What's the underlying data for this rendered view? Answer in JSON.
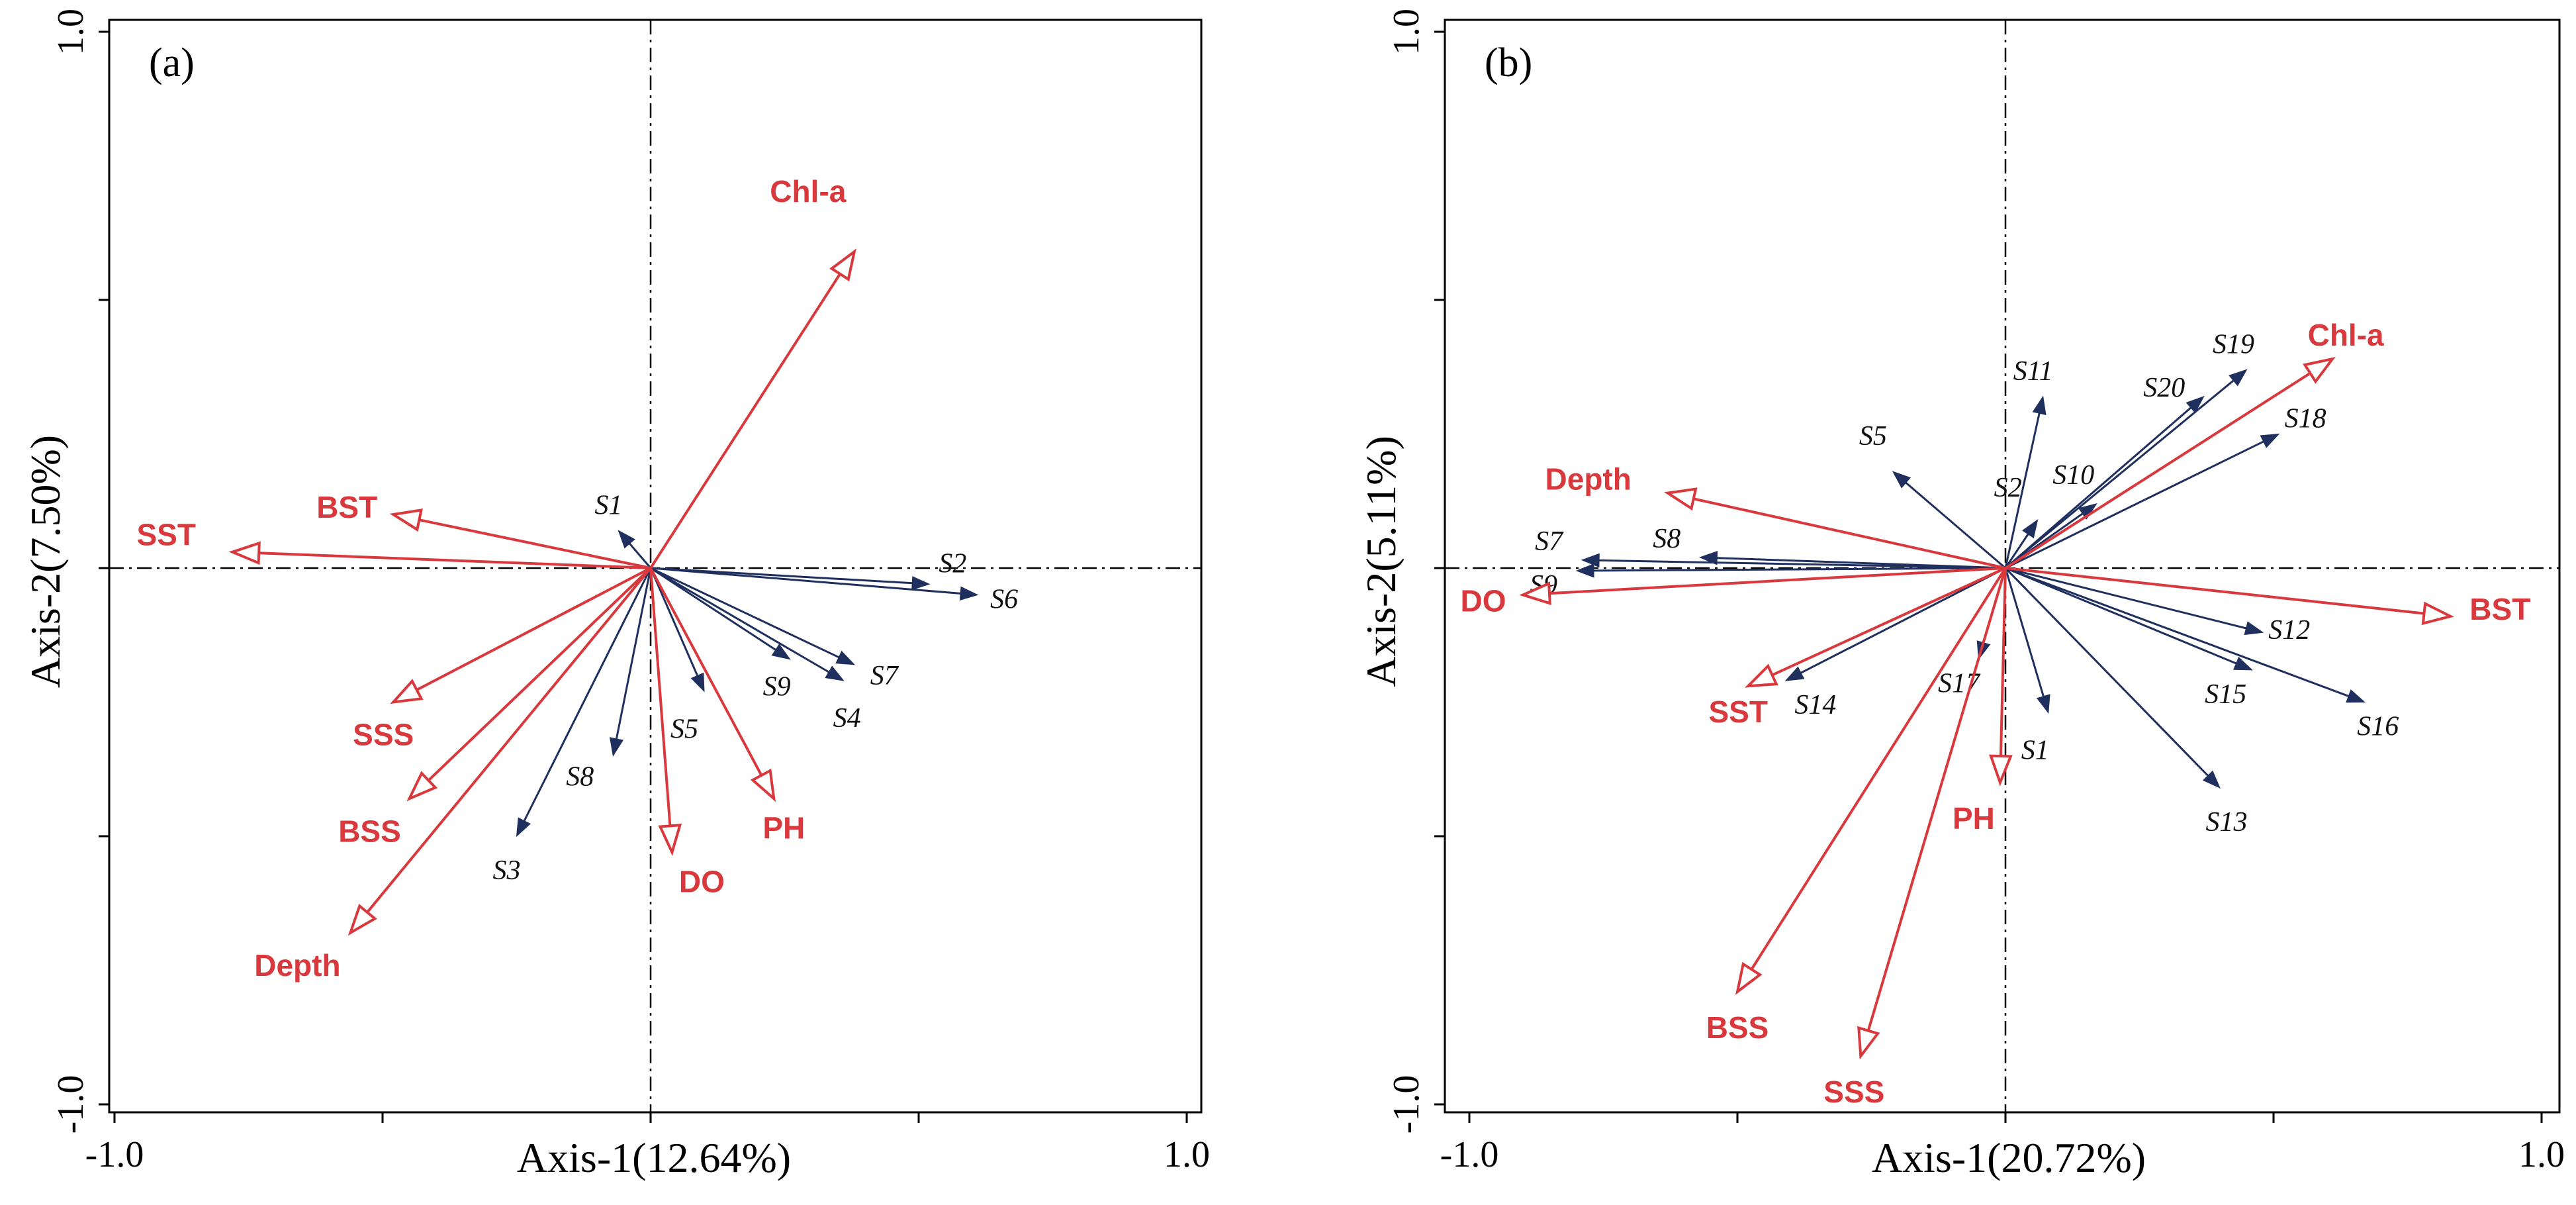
{
  "chart_data": [
    {
      "type": "scatter",
      "subtype": "rda-biplot",
      "panel_label": "(a)",
      "xlabel": "Axis-1(12.64%)",
      "ylabel": "Axis-2(7.50%)",
      "xlim": [
        -1.0,
        1.0
      ],
      "ylim": [
        -1.0,
        1.0
      ],
      "x_tick_labels": [
        "-1.0",
        "1.0"
      ],
      "y_tick_labels": [
        "1.0",
        "-1.0"
      ],
      "minor_ticks": [
        -0.5,
        0.5
      ],
      "colors": {
        "environment": "#d9383c",
        "species": "#1f2f5e"
      },
      "environment_vectors": [
        {
          "name": "Chl-a",
          "x": 0.38,
          "y": 0.59
        },
        {
          "name": "BST",
          "x": -0.48,
          "y": 0.1
        },
        {
          "name": "SST",
          "x": -0.78,
          "y": 0.03
        },
        {
          "name": "SSS",
          "x": -0.48,
          "y": -0.25
        },
        {
          "name": "BSS",
          "x": -0.45,
          "y": -0.43
        },
        {
          "name": "Depth",
          "x": -0.56,
          "y": -0.68
        },
        {
          "name": "DO",
          "x": 0.04,
          "y": -0.53
        },
        {
          "name": "PH",
          "x": 0.23,
          "y": -0.43
        }
      ],
      "species_vectors": [
        {
          "name": "S1",
          "x": -0.06,
          "y": 0.07
        },
        {
          "name": "S2",
          "x": 0.52,
          "y": -0.03
        },
        {
          "name": "S6",
          "x": 0.61,
          "y": -0.05
        },
        {
          "name": "S7",
          "x": 0.38,
          "y": -0.18
        },
        {
          "name": "S4",
          "x": 0.36,
          "y": -0.21
        },
        {
          "name": "S9",
          "x": 0.26,
          "y": -0.17
        },
        {
          "name": "S5",
          "x": 0.1,
          "y": -0.23
        },
        {
          "name": "S8",
          "x": -0.07,
          "y": -0.35
        },
        {
          "name": "S3",
          "x": -0.25,
          "y": -0.5
        }
      ]
    },
    {
      "type": "scatter",
      "subtype": "rda-biplot",
      "panel_label": "(b)",
      "xlabel": "Axis-1(20.72%)",
      "ylabel": "Axis-2(5.11%)",
      "xlim": [
        -1.0,
        1.0
      ],
      "ylim": [
        -1.0,
        1.0
      ],
      "x_tick_labels": [
        "-1.0",
        "1.0"
      ],
      "y_tick_labels": [
        "1.0",
        "-1.0"
      ],
      "minor_ticks": [
        -0.5,
        0.5
      ],
      "colors": {
        "environment": "#d9383c",
        "species": "#1f2f5e"
      },
      "environment_vectors": [
        {
          "name": "Chl-a",
          "x": 0.61,
          "y": 0.39
        },
        {
          "name": "BST",
          "x": 0.83,
          "y": -0.09
        },
        {
          "name": "Depth",
          "x": -0.63,
          "y": 0.14
        },
        {
          "name": "DO",
          "x": -0.9,
          "y": -0.05
        },
        {
          "name": "SST",
          "x": -0.48,
          "y": -0.22
        },
        {
          "name": "BSS",
          "x": -0.5,
          "y": -0.79
        },
        {
          "name": "SSS",
          "x": -0.27,
          "y": -0.91
        },
        {
          "name": "PH",
          "x": -0.01,
          "y": -0.4
        }
      ],
      "species_vectors": [
        {
          "name": "S11",
          "x": 0.07,
          "y": 0.32
        },
        {
          "name": "S19",
          "x": 0.45,
          "y": 0.37
        },
        {
          "name": "S20",
          "x": 0.37,
          "y": 0.32
        },
        {
          "name": "S18",
          "x": 0.51,
          "y": 0.25
        },
        {
          "name": "S10",
          "x": 0.17,
          "y": 0.12
        },
        {
          "name": "S2",
          "x": 0.06,
          "y": 0.09
        },
        {
          "name": "S5",
          "x": -0.21,
          "y": 0.18
        },
        {
          "name": "S8",
          "x": -0.57,
          "y": 0.02
        },
        {
          "name": "S7",
          "x": -0.79,
          "y": 0.015
        },
        {
          "name": "S9",
          "x": -0.8,
          "y": -0.005
        },
        {
          "name": "S12",
          "x": 0.48,
          "y": -0.12
        },
        {
          "name": "S15",
          "x": 0.46,
          "y": -0.19
        },
        {
          "name": "S16",
          "x": 0.67,
          "y": -0.25
        },
        {
          "name": "S13",
          "x": 0.4,
          "y": -0.41
        },
        {
          "name": "S1",
          "x": 0.08,
          "y": -0.27
        },
        {
          "name": "S17",
          "x": -0.05,
          "y": -0.17
        },
        {
          "name": "S14",
          "x": -0.41,
          "y": -0.21
        }
      ]
    }
  ]
}
